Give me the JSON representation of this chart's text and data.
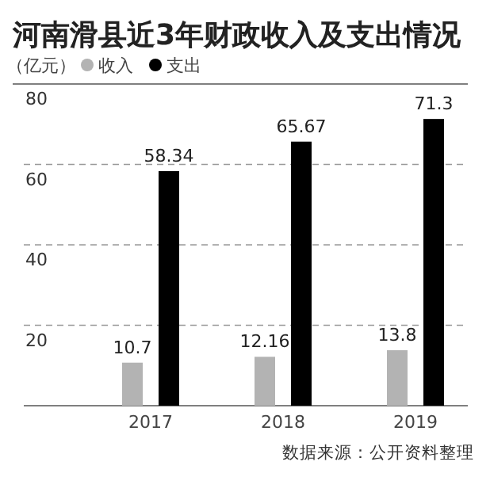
{
  "chart_data": {
    "type": "bar",
    "title": "河南滑县近3年财政收入及支出情况",
    "ylabel": "（亿元）",
    "categories": [
      "2017",
      "2018",
      "2019"
    ],
    "series": [
      {
        "name": "收入",
        "color": "#b3b3b3",
        "values": [
          10.7,
          12.16,
          13.8
        ]
      },
      {
        "name": "支出",
        "color": "#000000",
        "values": [
          58.34,
          65.67,
          71.3
        ]
      }
    ],
    "ylim": [
      0,
      80
    ],
    "yticks": [
      20,
      40,
      60,
      80
    ],
    "grid": "y",
    "legend": "top left",
    "data_labels": true,
    "annotations": [
      "数据来源：公开资料整理"
    ]
  }
}
